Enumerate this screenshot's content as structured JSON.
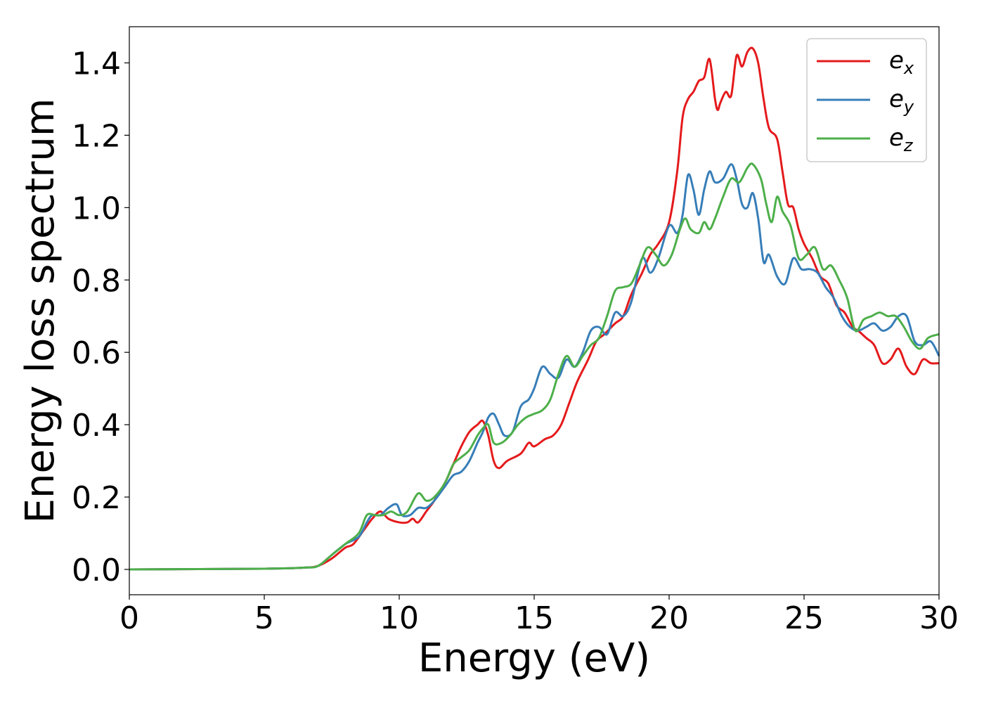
{
  "chart_data": {
    "type": "line",
    "title": "",
    "xlabel": "Energy (eV)",
    "ylabel": "Energy loss spectrum",
    "xlim": [
      0,
      30
    ],
    "ylim": [
      -0.07,
      1.5
    ],
    "xticks": [
      0,
      5,
      10,
      15,
      20,
      25,
      30
    ],
    "xtick_labels": [
      "0",
      "5",
      "10",
      "15",
      "20",
      "25",
      "30"
    ],
    "yticks": [
      0.0,
      0.2,
      0.4,
      0.6,
      0.8,
      1.0,
      1.2,
      1.4
    ],
    "ytick_labels": [
      "0.0",
      "0.2",
      "0.4",
      "0.6",
      "0.8",
      "1.0",
      "1.2",
      "1.4"
    ],
    "grid": false,
    "legend_position": "top-right",
    "series": [
      {
        "name": "e_x",
        "label_base": "e",
        "label_sub": "x",
        "color": "#e41a1c",
        "points": [
          [
            0,
            0.0
          ],
          [
            5,
            0.002
          ],
          [
            6.5,
            0.005
          ],
          [
            7.0,
            0.01
          ],
          [
            7.5,
            0.03
          ],
          [
            8.0,
            0.06
          ],
          [
            8.3,
            0.07
          ],
          [
            8.7,
            0.11
          ],
          [
            9.0,
            0.14
          ],
          [
            9.3,
            0.16
          ],
          [
            9.6,
            0.14
          ],
          [
            10.0,
            0.13
          ],
          [
            10.3,
            0.13
          ],
          [
            10.5,
            0.14
          ],
          [
            10.7,
            0.13
          ],
          [
            11.0,
            0.16
          ],
          [
            11.3,
            0.19
          ],
          [
            11.7,
            0.24
          ],
          [
            12.0,
            0.29
          ],
          [
            12.3,
            0.34
          ],
          [
            12.6,
            0.38
          ],
          [
            12.9,
            0.4
          ],
          [
            13.1,
            0.41
          ],
          [
            13.3,
            0.37
          ],
          [
            13.5,
            0.3
          ],
          [
            13.7,
            0.28
          ],
          [
            14.0,
            0.3
          ],
          [
            14.5,
            0.32
          ],
          [
            14.8,
            0.35
          ],
          [
            15.0,
            0.34
          ],
          [
            15.4,
            0.36
          ],
          [
            15.7,
            0.37
          ],
          [
            16.0,
            0.4
          ],
          [
            16.3,
            0.46
          ],
          [
            16.6,
            0.52
          ],
          [
            17.0,
            0.58
          ],
          [
            17.3,
            0.63
          ],
          [
            17.6,
            0.65
          ],
          [
            18.0,
            0.68
          ],
          [
            18.3,
            0.7
          ],
          [
            18.6,
            0.76
          ],
          [
            19.0,
            0.82
          ],
          [
            19.3,
            0.87
          ],
          [
            19.6,
            0.9
          ],
          [
            20.0,
            0.96
          ],
          [
            20.3,
            1.1
          ],
          [
            20.5,
            1.25
          ],
          [
            20.7,
            1.3
          ],
          [
            20.9,
            1.32
          ],
          [
            21.1,
            1.35
          ],
          [
            21.3,
            1.36
          ],
          [
            21.5,
            1.41
          ],
          [
            21.7,
            1.3
          ],
          [
            21.8,
            1.27
          ],
          [
            21.9,
            1.29
          ],
          [
            22.1,
            1.32
          ],
          [
            22.3,
            1.31
          ],
          [
            22.5,
            1.42
          ],
          [
            22.7,
            1.39
          ],
          [
            22.9,
            1.43
          ],
          [
            23.1,
            1.44
          ],
          [
            23.3,
            1.4
          ],
          [
            23.5,
            1.3
          ],
          [
            23.7,
            1.22
          ],
          [
            24.0,
            1.19
          ],
          [
            24.2,
            1.1
          ],
          [
            24.4,
            1.01
          ],
          [
            24.6,
            1.0
          ],
          [
            24.8,
            0.94
          ],
          [
            25.0,
            0.9
          ],
          [
            25.3,
            0.86
          ],
          [
            25.6,
            0.81
          ],
          [
            25.9,
            0.79
          ],
          [
            26.2,
            0.73
          ],
          [
            26.5,
            0.71
          ],
          [
            26.8,
            0.67
          ],
          [
            27.0,
            0.66
          ],
          [
            27.3,
            0.64
          ],
          [
            27.6,
            0.62
          ],
          [
            27.9,
            0.57
          ],
          [
            28.2,
            0.58
          ],
          [
            28.5,
            0.61
          ],
          [
            28.8,
            0.56
          ],
          [
            29.1,
            0.54
          ],
          [
            29.4,
            0.58
          ],
          [
            29.7,
            0.57
          ],
          [
            30.0,
            0.57
          ]
        ]
      },
      {
        "name": "e_y",
        "label_base": "e",
        "label_sub": "y",
        "color": "#377eb8",
        "points": [
          [
            0,
            0.0
          ],
          [
            5,
            0.002
          ],
          [
            6.5,
            0.005
          ],
          [
            7.0,
            0.01
          ],
          [
            7.5,
            0.04
          ],
          [
            8.0,
            0.07
          ],
          [
            8.5,
            0.09
          ],
          [
            8.8,
            0.13
          ],
          [
            9.0,
            0.15
          ],
          [
            9.3,
            0.15
          ],
          [
            9.6,
            0.17
          ],
          [
            9.9,
            0.18
          ],
          [
            10.1,
            0.15
          ],
          [
            10.4,
            0.15
          ],
          [
            10.7,
            0.17
          ],
          [
            11.0,
            0.17
          ],
          [
            11.3,
            0.19
          ],
          [
            11.7,
            0.23
          ],
          [
            12.0,
            0.26
          ],
          [
            12.3,
            0.27
          ],
          [
            12.6,
            0.3
          ],
          [
            12.9,
            0.35
          ],
          [
            13.1,
            0.38
          ],
          [
            13.3,
            0.42
          ],
          [
            13.5,
            0.43
          ],
          [
            13.7,
            0.4
          ],
          [
            13.9,
            0.37
          ],
          [
            14.2,
            0.38
          ],
          [
            14.5,
            0.45
          ],
          [
            14.8,
            0.47
          ],
          [
            15.0,
            0.5
          ],
          [
            15.3,
            0.56
          ],
          [
            15.6,
            0.54
          ],
          [
            15.9,
            0.53
          ],
          [
            16.2,
            0.58
          ],
          [
            16.5,
            0.56
          ],
          [
            16.8,
            0.6
          ],
          [
            17.1,
            0.66
          ],
          [
            17.4,
            0.67
          ],
          [
            17.7,
            0.65
          ],
          [
            18.0,
            0.71
          ],
          [
            18.3,
            0.7
          ],
          [
            18.6,
            0.74
          ],
          [
            19.0,
            0.86
          ],
          [
            19.3,
            0.82
          ],
          [
            19.6,
            0.86
          ],
          [
            20.0,
            0.95
          ],
          [
            20.3,
            0.93
          ],
          [
            20.5,
            0.98
          ],
          [
            20.7,
            1.09
          ],
          [
            20.9,
            1.05
          ],
          [
            21.1,
            0.98
          ],
          [
            21.3,
            1.05
          ],
          [
            21.5,
            1.1
          ],
          [
            21.7,
            1.07
          ],
          [
            22.0,
            1.08
          ],
          [
            22.3,
            1.12
          ],
          [
            22.5,
            1.08
          ],
          [
            22.7,
            1.01
          ],
          [
            22.9,
            1.0
          ],
          [
            23.1,
            1.04
          ],
          [
            23.3,
            0.97
          ],
          [
            23.5,
            0.85
          ],
          [
            23.7,
            0.87
          ],
          [
            24.0,
            0.81
          ],
          [
            24.3,
            0.79
          ],
          [
            24.6,
            0.86
          ],
          [
            24.9,
            0.83
          ],
          [
            25.2,
            0.83
          ],
          [
            25.5,
            0.82
          ],
          [
            25.8,
            0.78
          ],
          [
            26.1,
            0.75
          ],
          [
            26.4,
            0.7
          ],
          [
            26.7,
            0.67
          ],
          [
            27.0,
            0.66
          ],
          [
            27.3,
            0.67
          ],
          [
            27.6,
            0.68
          ],
          [
            27.9,
            0.66
          ],
          [
            28.2,
            0.67
          ],
          [
            28.5,
            0.7
          ],
          [
            28.8,
            0.7
          ],
          [
            29.1,
            0.63
          ],
          [
            29.4,
            0.62
          ],
          [
            29.7,
            0.63
          ],
          [
            30.0,
            0.59
          ]
        ]
      },
      {
        "name": "e_z",
        "label_base": "e",
        "label_sub": "z",
        "color": "#4daf4a",
        "points": [
          [
            0,
            0.0
          ],
          [
            5,
            0.002
          ],
          [
            6.5,
            0.005
          ],
          [
            7.0,
            0.01
          ],
          [
            7.5,
            0.04
          ],
          [
            8.0,
            0.07
          ],
          [
            8.5,
            0.1
          ],
          [
            8.8,
            0.15
          ],
          [
            9.1,
            0.15
          ],
          [
            9.4,
            0.15
          ],
          [
            9.7,
            0.16
          ],
          [
            10.0,
            0.15
          ],
          [
            10.3,
            0.16
          ],
          [
            10.7,
            0.21
          ],
          [
            11.0,
            0.19
          ],
          [
            11.3,
            0.2
          ],
          [
            11.7,
            0.24
          ],
          [
            12.0,
            0.29
          ],
          [
            12.3,
            0.31
          ],
          [
            12.6,
            0.33
          ],
          [
            12.9,
            0.37
          ],
          [
            13.1,
            0.39
          ],
          [
            13.3,
            0.4
          ],
          [
            13.5,
            0.35
          ],
          [
            13.8,
            0.35
          ],
          [
            14.1,
            0.37
          ],
          [
            14.4,
            0.4
          ],
          [
            14.7,
            0.42
          ],
          [
            15.0,
            0.43
          ],
          [
            15.3,
            0.44
          ],
          [
            15.6,
            0.47
          ],
          [
            15.9,
            0.54
          ],
          [
            16.2,
            0.59
          ],
          [
            16.5,
            0.56
          ],
          [
            16.8,
            0.59
          ],
          [
            17.1,
            0.62
          ],
          [
            17.4,
            0.64
          ],
          [
            17.7,
            0.7
          ],
          [
            18.0,
            0.77
          ],
          [
            18.3,
            0.78
          ],
          [
            18.6,
            0.79
          ],
          [
            18.9,
            0.84
          ],
          [
            19.2,
            0.89
          ],
          [
            19.5,
            0.87
          ],
          [
            19.8,
            0.84
          ],
          [
            20.1,
            0.87
          ],
          [
            20.4,
            0.94
          ],
          [
            20.6,
            0.97
          ],
          [
            20.8,
            0.94
          ],
          [
            21.1,
            0.93
          ],
          [
            21.3,
            0.96
          ],
          [
            21.5,
            0.94
          ],
          [
            21.7,
            0.97
          ],
          [
            22.0,
            1.03
          ],
          [
            22.3,
            1.08
          ],
          [
            22.6,
            1.07
          ],
          [
            22.9,
            1.11
          ],
          [
            23.1,
            1.12
          ],
          [
            23.4,
            1.08
          ],
          [
            23.6,
            1.01
          ],
          [
            23.8,
            0.96
          ],
          [
            24.0,
            1.03
          ],
          [
            24.2,
            0.99
          ],
          [
            24.5,
            0.95
          ],
          [
            24.8,
            0.86
          ],
          [
            25.1,
            0.87
          ],
          [
            25.4,
            0.89
          ],
          [
            25.7,
            0.83
          ],
          [
            26.0,
            0.84
          ],
          [
            26.3,
            0.8
          ],
          [
            26.6,
            0.75
          ],
          [
            26.9,
            0.66
          ],
          [
            27.2,
            0.69
          ],
          [
            27.5,
            0.7
          ],
          [
            27.8,
            0.71
          ],
          [
            28.1,
            0.7
          ],
          [
            28.4,
            0.7
          ],
          [
            28.7,
            0.67
          ],
          [
            29.0,
            0.63
          ],
          [
            29.3,
            0.61
          ],
          [
            29.6,
            0.64
          ],
          [
            30.0,
            0.65
          ]
        ]
      }
    ]
  }
}
